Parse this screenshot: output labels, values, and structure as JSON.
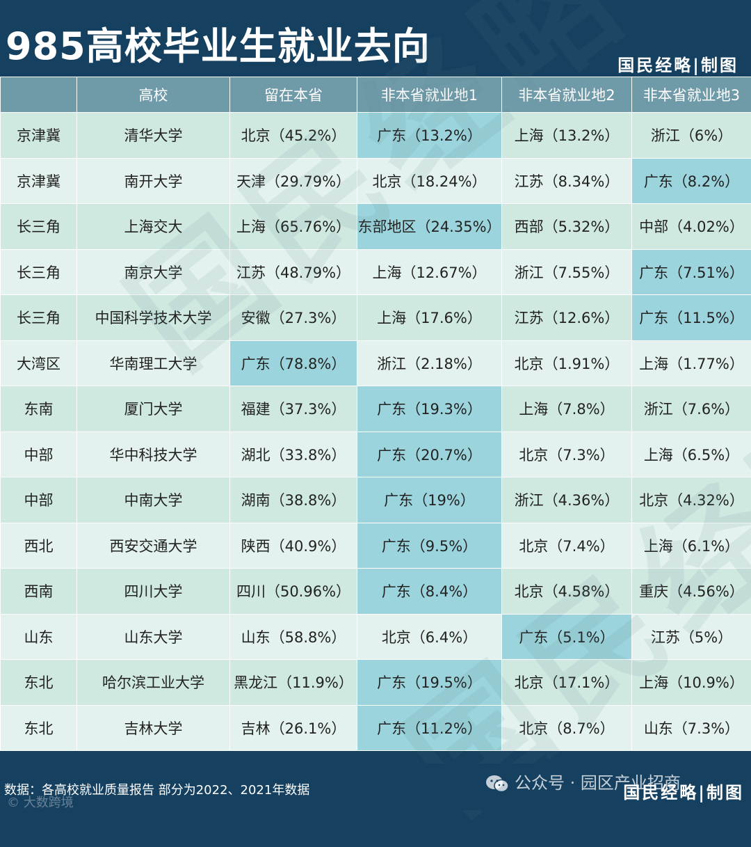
{
  "title": "985高校毕业生就业去向",
  "brand": "国民经略|制图",
  "watermark": "国民经略",
  "headers": [
    "",
    "高校",
    "留在本省",
    "非本省就业地1",
    "非本省就业地2",
    "非本省就业地3"
  ],
  "rows": [
    {
      "region": "京津冀",
      "school": "清华大学",
      "home": "北京（45.2%）",
      "d1": "广东（13.2%）",
      "d2": "上海（13.2%）",
      "d3": "浙江（6%）"
    },
    {
      "region": "京津冀",
      "school": "南开大学",
      "home": "天津（29.79%）",
      "d1": "北京（18.24%）",
      "d2": "江苏（8.34%）",
      "d3": "广东（8.2%）"
    },
    {
      "region": "长三角",
      "school": "上海交大",
      "home": "上海（65.76%）",
      "d1": "东部地区（24.35%）",
      "d2": "西部（5.32%）",
      "d3": "中部（4.02%）"
    },
    {
      "region": "长三角",
      "school": "南京大学",
      "home": "江苏（48.79%）",
      "d1": "上海（12.67%）",
      "d2": "浙江（7.55%）",
      "d3": "广东（7.51%）"
    },
    {
      "region": "长三角",
      "school": "中国科学技术大学",
      "home": "安徽（27.3%）",
      "d1": "上海（17.6%）",
      "d2": "江苏（12.6%）",
      "d3": "广东（11.5%）"
    },
    {
      "region": "大湾区",
      "school": "华南理工大学",
      "home": "广东（78.8%）",
      "d1": "浙江（2.18%）",
      "d2": "北京（1.91%）",
      "d3": "上海（1.77%）"
    },
    {
      "region": "东南",
      "school": "厦门大学",
      "home": "福建（37.3%）",
      "d1": "广东（19.3%）",
      "d2": "上海（7.8%）",
      "d3": "浙江（7.6%）"
    },
    {
      "region": "中部",
      "school": "华中科技大学",
      "home": "湖北（33.8%）",
      "d1": "广东（20.7%）",
      "d2": "北京（7.3%）",
      "d3": "上海（6.5%）"
    },
    {
      "region": "中部",
      "school": "中南大学",
      "home": "湖南（38.8%）",
      "d1": "广东（19%）",
      "d2": "浙江（4.36%）",
      "d3": "北京（4.32%）"
    },
    {
      "region": "西北",
      "school": "西安交通大学",
      "home": "陕西（40.9%）",
      "d1": "广东（9.5%）",
      "d2": "北京（7.4%）",
      "d3": "上海（6.1%）"
    },
    {
      "region": "西南",
      "school": "四川大学",
      "home": "四川（50.96%）",
      "d1": "广东（8.4%）",
      "d2": "北京（4.58%）",
      "d3": "重庆（4.56%）"
    },
    {
      "region": "山东",
      "school": "山东大学",
      "home": "山东（58.8%）",
      "d1": "北京（6.4%）",
      "d2": "广东（5.1%）",
      "d3": "江苏（5%）"
    },
    {
      "region": "东北",
      "school": "哈尔滨工业大学",
      "home": "黑龙江（11.9%）",
      "d1": "广东（19.5%）",
      "d2": "北京（17.1%）",
      "d3": "上海（10.9%）"
    },
    {
      "region": "东北",
      "school": "吉林大学",
      "home": "吉林（26.1%）",
      "d1": "广东（11.2%）",
      "d2": "北京（8.7%）",
      "d3": "山东（7.3%）"
    }
  ],
  "highlight_color": "#9bd4dc",
  "source": "数据：各高校就业质量报告 部分为2022、2021年数据",
  "wechat_label": "公众号 · 园区产业招商",
  "corner_mark": "© 大数跨境"
}
